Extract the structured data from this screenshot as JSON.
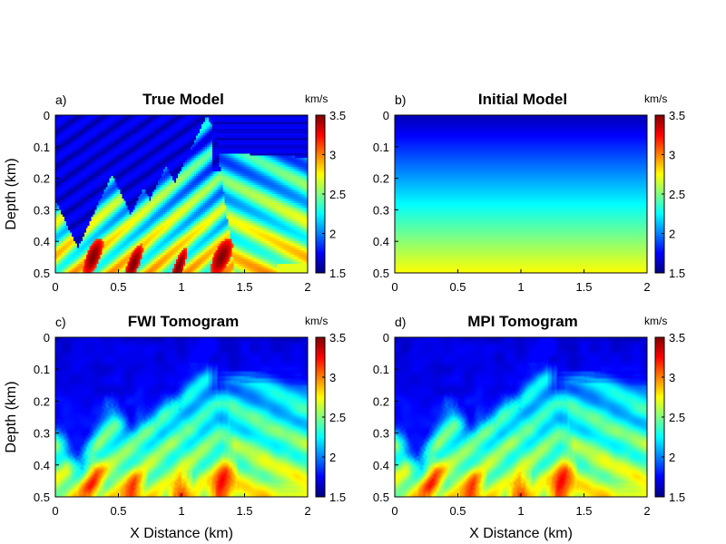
{
  "chart_data": [
    {
      "type": "heatmap",
      "panel_label": "a)",
      "title": "True Model",
      "colorbar_unit": "km/s",
      "ylabel": "Depth (km)",
      "xlabel": "",
      "x_ticks": [
        "0",
        "0.5",
        "1",
        "1.5",
        "2"
      ],
      "y_ticks": [
        "0",
        "0.1",
        "0.2",
        "0.3",
        "0.4",
        "0.5"
      ],
      "colorbar_ticks": [
        "1.5",
        "2",
        "2.5",
        "3",
        "3.5"
      ],
      "xlim": [
        0,
        2
      ],
      "ylim": [
        0,
        0.5
      ],
      "clim": [
        1.5,
        3.5
      ],
      "colormap": "jet",
      "field": "true_model"
    },
    {
      "type": "heatmap",
      "panel_label": "b)",
      "title": "Initial Model",
      "colorbar_unit": "km/s",
      "ylabel": "",
      "xlabel": "",
      "x_ticks": [
        "0",
        "0.5",
        "1",
        "1.5",
        "2"
      ],
      "y_ticks": [
        "0",
        "0.1",
        "0.2",
        "0.3",
        "0.4",
        "0.5"
      ],
      "colorbar_ticks": [
        "1.5",
        "2",
        "2.5",
        "3",
        "3.5"
      ],
      "xlim": [
        0,
        2
      ],
      "ylim": [
        0,
        0.5
      ],
      "clim": [
        1.5,
        3.5
      ],
      "colormap": "jet",
      "field": "linear_gradient",
      "velocity_top": 1.6,
      "velocity_bottom": 2.75
    },
    {
      "type": "heatmap",
      "panel_label": "c)",
      "title": "FWI Tomogram",
      "colorbar_unit": "km/s",
      "ylabel": "Depth (km)",
      "xlabel": "X Distance (km)",
      "x_ticks": [
        "0",
        "0.5",
        "1",
        "1.5",
        "2"
      ],
      "y_ticks": [
        "0",
        "0.1",
        "0.2",
        "0.3",
        "0.4",
        "0.5"
      ],
      "colorbar_ticks": [
        "1.5",
        "2",
        "2.5",
        "3",
        "3.5"
      ],
      "xlim": [
        0,
        2
      ],
      "ylim": [
        0,
        0.5
      ],
      "clim": [
        1.5,
        3.5
      ],
      "colormap": "jet",
      "field": "tomogram"
    },
    {
      "type": "heatmap",
      "panel_label": "d)",
      "title": "MPI Tomogram",
      "colorbar_unit": "km/s",
      "ylabel": "",
      "xlabel": "X Distance (km)",
      "x_ticks": [
        "0",
        "0.5",
        "1",
        "1.5",
        "2"
      ],
      "y_ticks": [
        "0",
        "0.1",
        "0.2",
        "0.3",
        "0.4",
        "0.5"
      ],
      "colorbar_ticks": [
        "1.5",
        "2",
        "2.5",
        "3",
        "3.5"
      ],
      "xlim": [
        0,
        2
      ],
      "ylim": [
        0,
        0.5
      ],
      "clim": [
        1.5,
        3.5
      ],
      "colormap": "jet",
      "field": "tomogram"
    }
  ]
}
